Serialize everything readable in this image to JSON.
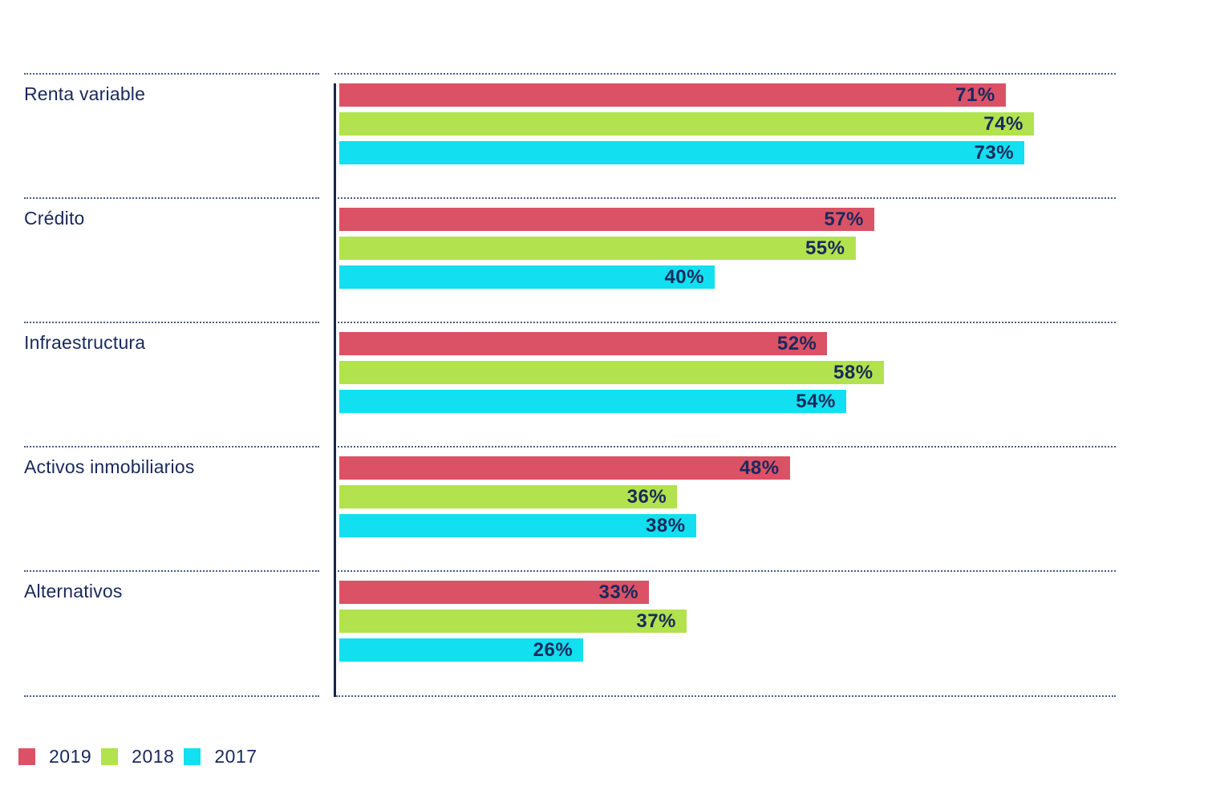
{
  "chart_data": {
    "type": "bar",
    "orientation": "horizontal",
    "title": "",
    "xlabel": "",
    "ylabel": "",
    "xlim": [
      0,
      83
    ],
    "grid": false,
    "value_suffix": "%",
    "legend_position": "bottom-left",
    "categories": [
      "Renta variable",
      "Crédito",
      "Infraestructura",
      "Activos inmobiliarios",
      "Alternativos"
    ],
    "series": [
      {
        "name": "2019",
        "color": "#DB5266",
        "values": [
          71,
          57,
          52,
          48,
          33
        ]
      },
      {
        "name": "2018",
        "color": "#B2E24E",
        "values": [
          74,
          55,
          58,
          36,
          37
        ]
      },
      {
        "name": "2017",
        "color": "#12DFF0",
        "values": [
          73,
          40,
          54,
          38,
          26
        ]
      }
    ]
  },
  "legend": {
    "items": [
      {
        "label": "2019",
        "color": "#DB5266"
      },
      {
        "label": "2018",
        "color": "#B2E24E"
      },
      {
        "label": "2017",
        "color": "#12DFF0"
      }
    ]
  },
  "colors": {
    "text_navy": "#19295C",
    "axis_navy": "#16254F",
    "background": "#FFFFFF"
  }
}
